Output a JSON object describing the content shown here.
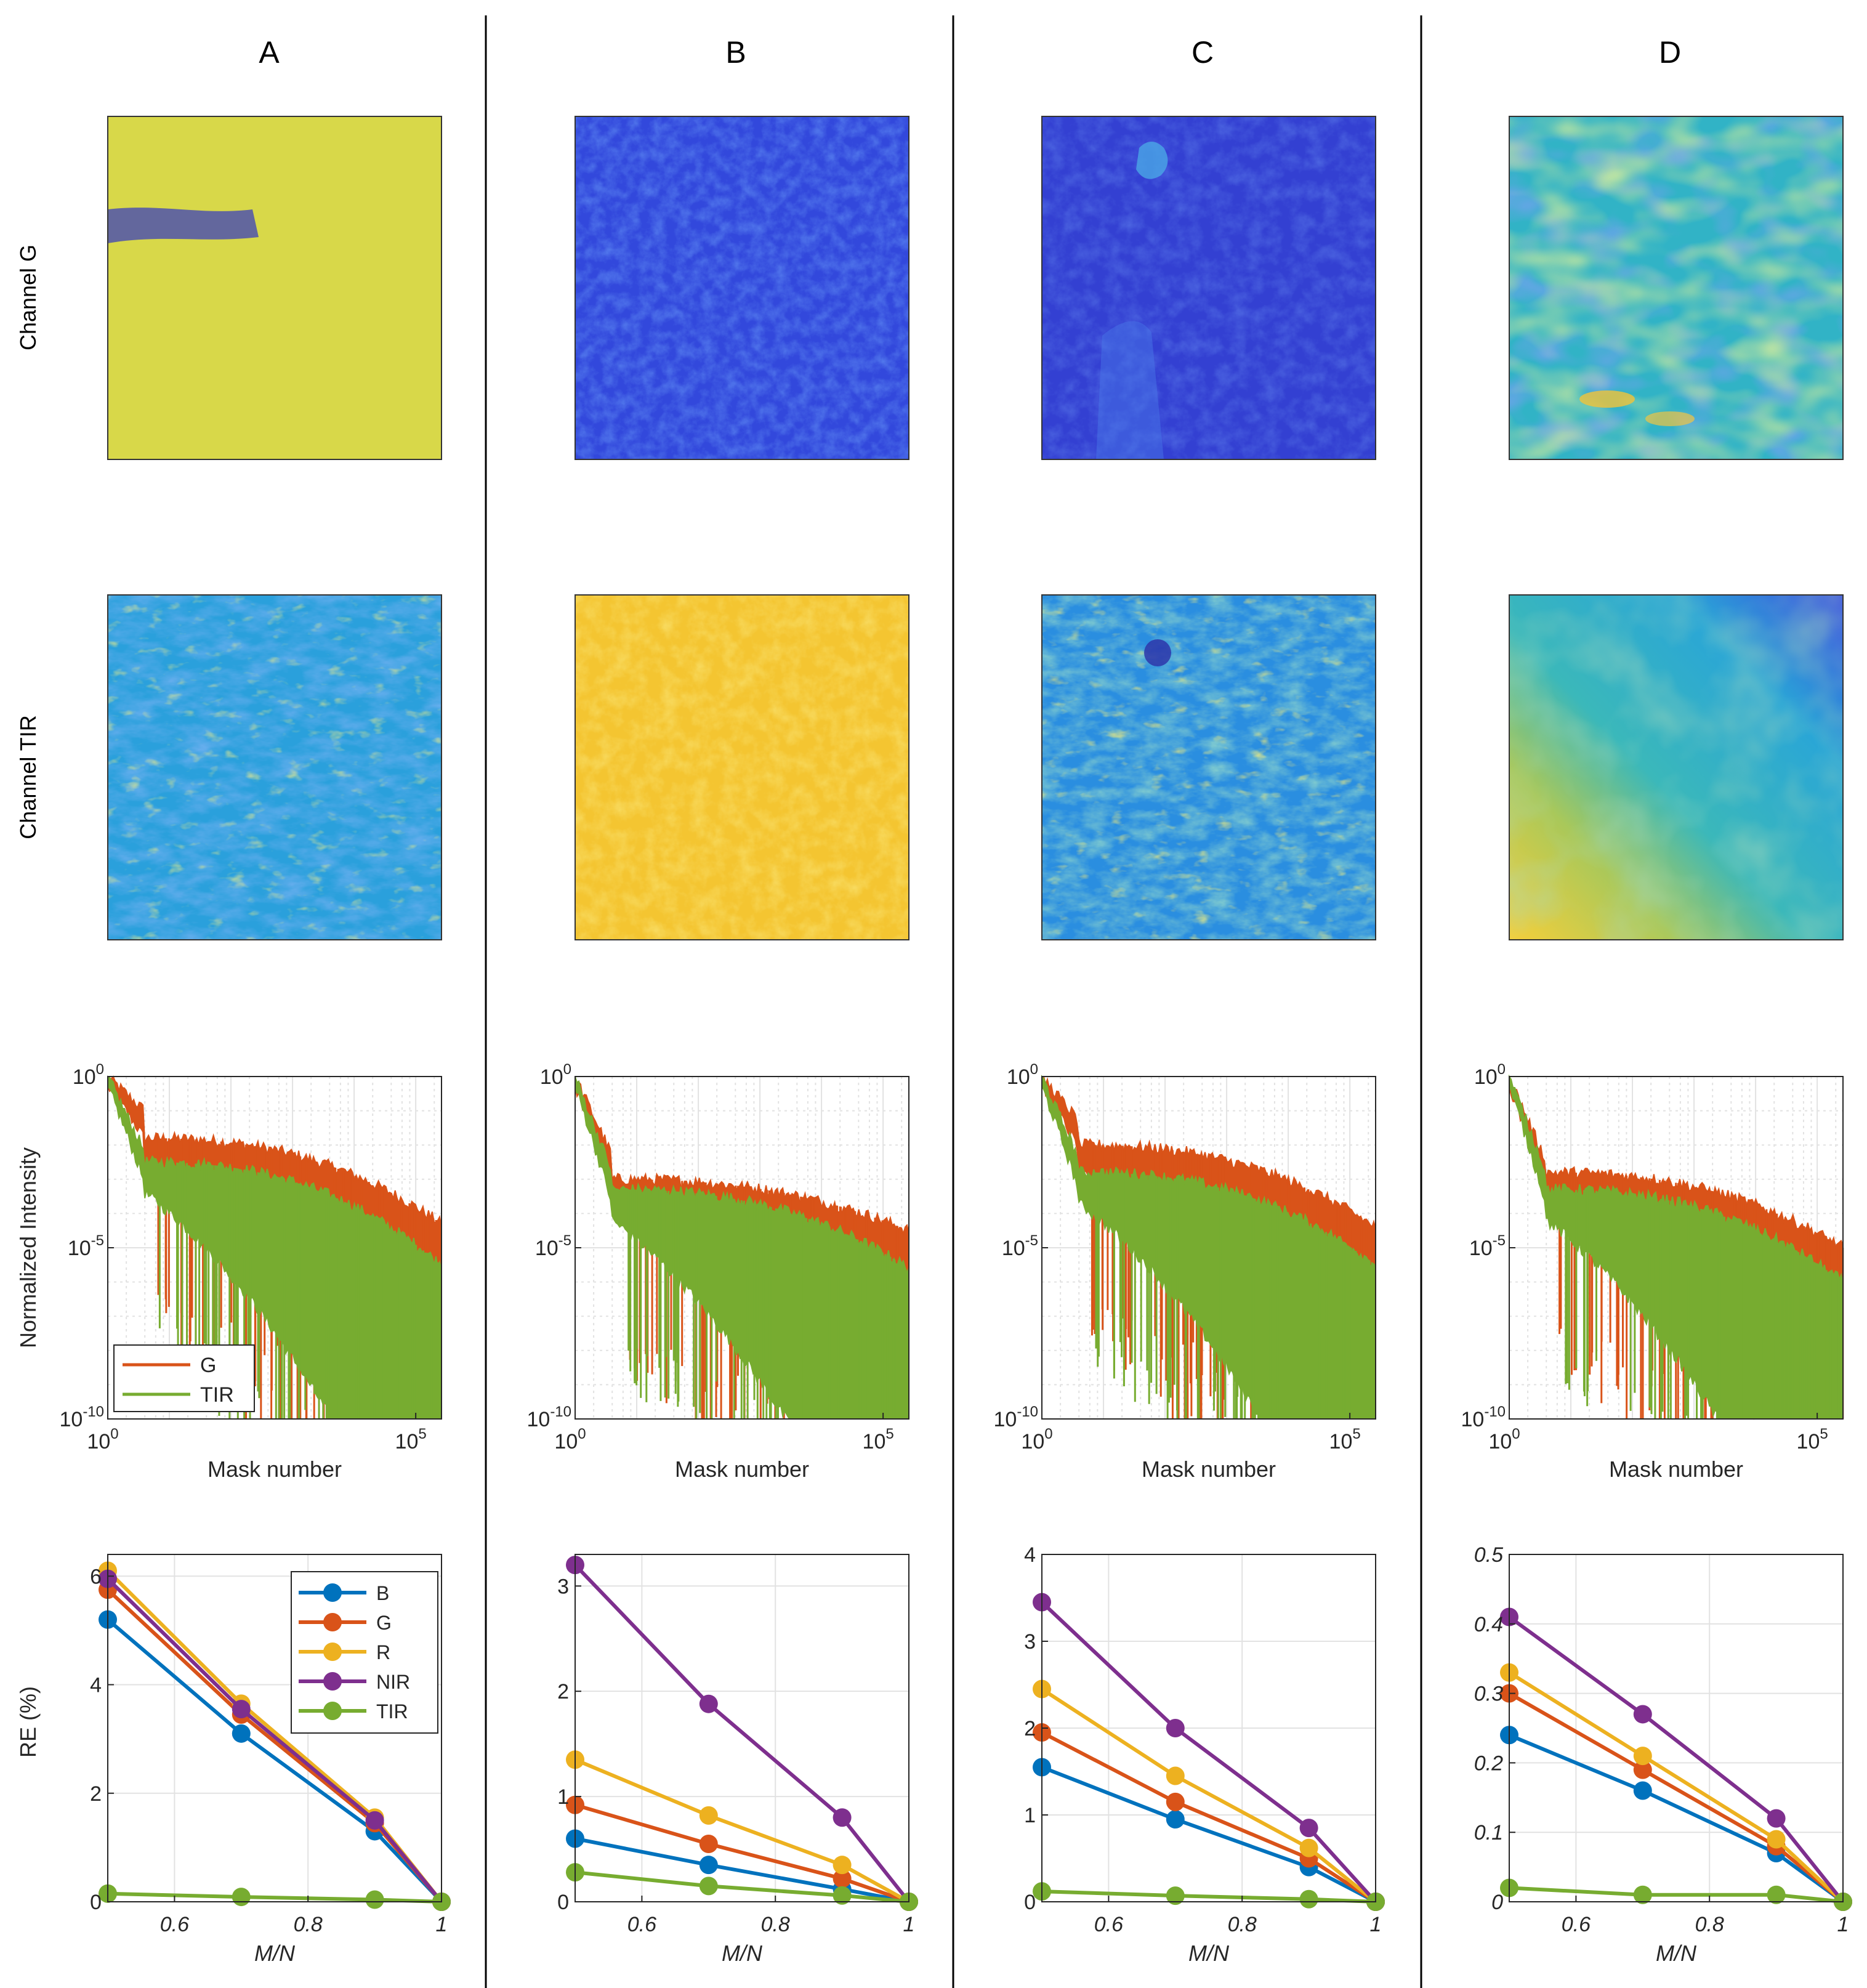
{
  "columns": [
    "A",
    "B",
    "C",
    "D"
  ],
  "row_labels": {
    "green": "Channel G",
    "thermal": "Channel TIR"
  },
  "colors": {
    "G": "#D95319",
    "TIR": "#77AC30",
    "series": {
      "B": "#0072BD",
      "G": "#D95319",
      "R": "#EDB120",
      "NIR": "#7E2F8E",
      "TIR": "#77AC30"
    },
    "panel_border": "#333333",
    "grid": "#DCDCDC",
    "divider": "#000000"
  },
  "chart_data": [
    {
      "type": "line",
      "id": "spectrum",
      "title": "",
      "xlabel": "Mask number",
      "ylabel": "Normalized Intensity",
      "xscale": "log",
      "yscale": "log",
      "xlim": [
        1,
        262144
      ],
      "ylim": [
        1e-10,
        1
      ],
      "xticks": [
        {
          "base": "10",
          "exp": "0"
        },
        {
          "base": "10",
          "exp": "5"
        }
      ],
      "yticks_by_column": [
        [
          {
            "base": "10",
            "exp": "0"
          },
          {
            "base": "10",
            "exp": "-5"
          },
          {
            "base": "10",
            "exp": "-10"
          }
        ],
        [
          {
            "base": "10",
            "exp": "0"
          },
          {
            "base": "10",
            "exp": "-5"
          },
          {
            "base": "10",
            "exp": "-10"
          }
        ],
        [
          {
            "base": "10",
            "exp": "0"
          },
          {
            "base": "10",
            "exp": "-5"
          },
          {
            "base": "10",
            "exp": "-10"
          }
        ],
        [
          {
            "base": "10",
            "exp": "0"
          },
          {
            "base": "10",
            "exp": "-5"
          },
          {
            "base": "10",
            "exp": "-10"
          }
        ]
      ],
      "legend": {
        "location": "bottom-left",
        "column": "A",
        "entries": [
          "G",
          "TIR"
        ]
      },
      "series_by_column": {
        "A": {
          "G": {
            "start_log": -1.0,
            "plateau_log": -1.8,
            "end_log": -4.3,
            "floor_log": -10
          },
          "TIR": {
            "start_log": -2.2,
            "plateau_log": -2.5,
            "end_log": -5.5,
            "floor_log": -10
          }
        },
        "B": {
          "G": {
            "start_log": -2.3,
            "plateau_log": -3.0,
            "end_log": -4.5,
            "floor_log": -10
          },
          "TIR": {
            "start_log": -2.8,
            "plateau_log": -3.3,
            "end_log": -5.6,
            "floor_log": -10
          }
        },
        "C": {
          "G": {
            "start_log": -1.3,
            "plateau_log": -2.0,
            "end_log": -4.4,
            "floor_log": -10
          },
          "TIR": {
            "start_log": -2.4,
            "plateau_log": -2.8,
            "end_log": -5.5,
            "floor_log": -10
          }
        },
        "D": {
          "G": {
            "start_log": -2.5,
            "plateau_log": -2.8,
            "end_log": -5.0,
            "floor_log": -10
          },
          "TIR": {
            "start_log": -2.8,
            "plateau_log": -3.3,
            "end_log": -6.0,
            "floor_log": -10
          }
        }
      }
    },
    {
      "type": "line",
      "id": "relative-error",
      "title": "",
      "xlabel": "M/N",
      "ylabel": "RE (%)",
      "x": [
        0.5,
        0.7,
        0.9,
        1.0
      ],
      "xlim": [
        0.5,
        1.0
      ],
      "xticks": [
        "0.6",
        "0.8",
        "1"
      ],
      "legend": {
        "location": "top-right",
        "column": "A",
        "entries": [
          "B",
          "G",
          "R",
          "NIR",
          "TIR"
        ]
      },
      "panels": {
        "A": {
          "ylim": [
            0,
            6.4
          ],
          "yticks": [
            "0",
            "2",
            "4",
            "6"
          ],
          "italic": false,
          "series": [
            {
              "name": "B",
              "values": [
                5.2,
                3.1,
                1.3,
                0
              ]
            },
            {
              "name": "G",
              "values": [
                5.75,
                3.45,
                1.45,
                0
              ]
            },
            {
              "name": "R",
              "values": [
                6.1,
                3.65,
                1.55,
                0
              ]
            },
            {
              "name": "NIR",
              "values": [
                5.95,
                3.55,
                1.5,
                0
              ]
            },
            {
              "name": "TIR",
              "values": [
                0.15,
                0.09,
                0.04,
                0
              ]
            }
          ]
        },
        "B": {
          "ylim": [
            0,
            3.3
          ],
          "yticks": [
            "0",
            "1",
            "2",
            "3"
          ],
          "italic": false,
          "series": [
            {
              "name": "B",
              "values": [
                0.6,
                0.35,
                0.12,
                0
              ]
            },
            {
              "name": "G",
              "values": [
                0.92,
                0.55,
                0.22,
                0
              ]
            },
            {
              "name": "R",
              "values": [
                1.35,
                0.82,
                0.35,
                0
              ]
            },
            {
              "name": "NIR",
              "values": [
                3.2,
                1.88,
                0.8,
                0
              ]
            },
            {
              "name": "TIR",
              "values": [
                0.28,
                0.15,
                0.06,
                0
              ]
            }
          ]
        },
        "C": {
          "ylim": [
            0,
            4
          ],
          "yticks": [
            "0",
            "1",
            "2",
            "3",
            "4"
          ],
          "italic": false,
          "series": [
            {
              "name": "B",
              "values": [
                1.55,
                0.95,
                0.4,
                0
              ]
            },
            {
              "name": "G",
              "values": [
                1.95,
                1.15,
                0.5,
                0
              ]
            },
            {
              "name": "R",
              "values": [
                2.45,
                1.45,
                0.62,
                0
              ]
            },
            {
              "name": "NIR",
              "values": [
                3.45,
                2.0,
                0.85,
                0
              ]
            },
            {
              "name": "TIR",
              "values": [
                0.12,
                0.07,
                0.03,
                0
              ]
            }
          ]
        },
        "D": {
          "ylim": [
            0,
            0.5
          ],
          "yticks": [
            "0",
            "0.1",
            "0.2",
            "0.3",
            "0.4",
            "0.5"
          ],
          "italic": true,
          "series": [
            {
              "name": "B",
              "values": [
                0.24,
                0.16,
                0.07,
                0
              ]
            },
            {
              "name": "G",
              "values": [
                0.3,
                0.19,
                0.08,
                0
              ]
            },
            {
              "name": "R",
              "values": [
                0.33,
                0.21,
                0.09,
                0
              ]
            },
            {
              "name": "NIR",
              "values": [
                0.41,
                0.27,
                0.12,
                0
              ]
            },
            {
              "name": "TIR",
              "values": [
                0.02,
                0.01,
                0.01,
                0
              ]
            }
          ]
        }
      }
    }
  ]
}
